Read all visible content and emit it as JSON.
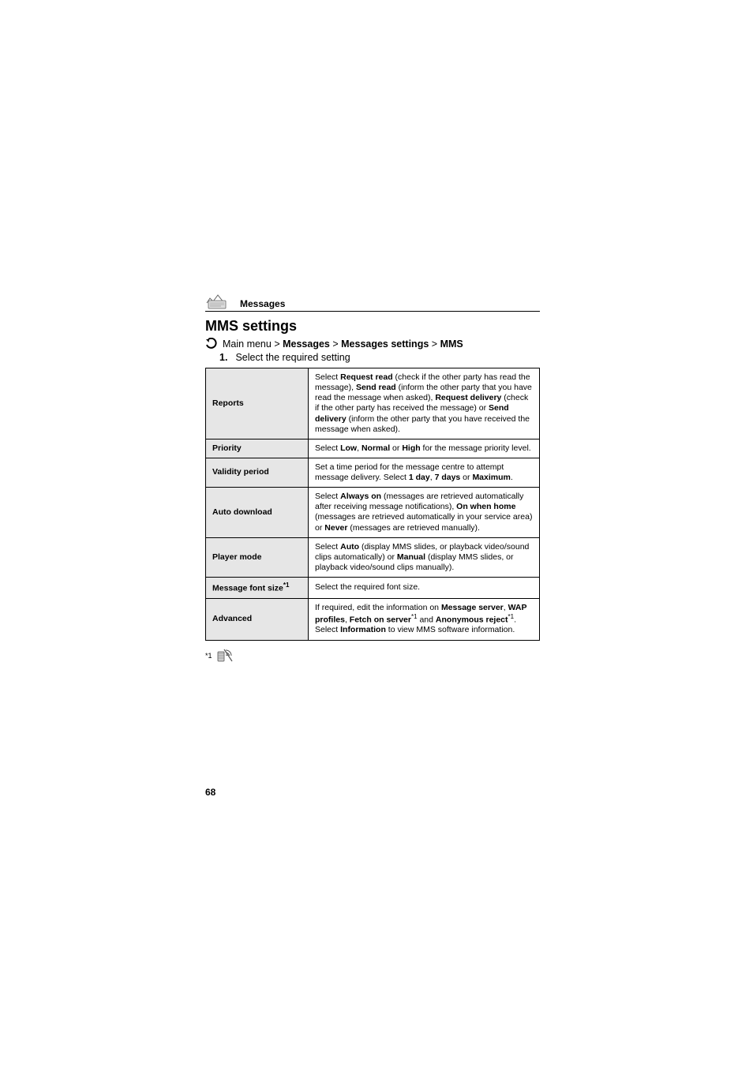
{
  "header": {
    "section_label": "Messages"
  },
  "title": "MMS settings",
  "breadcrumb": {
    "prefix": "Main menu",
    "sep": ">",
    "items": [
      "Messages",
      "Messages settings",
      "MMS"
    ]
  },
  "step": {
    "num": "1.",
    "text": "Select the required setting"
  },
  "table": {
    "rows": [
      {
        "label": "Reports",
        "desc_parts": [
          {
            "t": "Select ",
            "b": false
          },
          {
            "t": "Request read",
            "b": true
          },
          {
            "t": " (check if the other party has read the message), ",
            "b": false
          },
          {
            "t": "Send read",
            "b": true
          },
          {
            "t": " (inform the other party that you have read the message when asked), ",
            "b": false
          },
          {
            "t": "Request delivery",
            "b": true
          },
          {
            "t": " (check if the other party has received the message) or ",
            "b": false
          },
          {
            "t": "Send delivery",
            "b": true
          },
          {
            "t": " (inform the other party that you have received the message when asked).",
            "b": false
          }
        ]
      },
      {
        "label": "Priority",
        "desc_parts": [
          {
            "t": "Select ",
            "b": false
          },
          {
            "t": "Low",
            "b": true
          },
          {
            "t": ", ",
            "b": false
          },
          {
            "t": "Normal",
            "b": true
          },
          {
            "t": " or ",
            "b": false
          },
          {
            "t": "High",
            "b": true
          },
          {
            "t": " for the message priority level.",
            "b": false
          }
        ]
      },
      {
        "label": "Validity period",
        "desc_parts": [
          {
            "t": "Set a time period for the message centre to attempt message delivery. Select ",
            "b": false
          },
          {
            "t": "1 day",
            "b": true
          },
          {
            "t": ", ",
            "b": false
          },
          {
            "t": "7 days",
            "b": true
          },
          {
            "t": " or ",
            "b": false
          },
          {
            "t": "Maximum",
            "b": true
          },
          {
            "t": ".",
            "b": false
          }
        ]
      },
      {
        "label": "Auto download",
        "desc_parts": [
          {
            "t": "Select ",
            "b": false
          },
          {
            "t": "Always on",
            "b": true
          },
          {
            "t": " (messages are retrieved automatically after receiving message notifications), ",
            "b": false
          },
          {
            "t": "On when home",
            "b": true
          },
          {
            "t": " (messages are retrieved automatically in your service area) or ",
            "b": false
          },
          {
            "t": "Never",
            "b": true
          },
          {
            "t": " (messages are retrieved manually).",
            "b": false
          }
        ]
      },
      {
        "label": "Player mode",
        "desc_parts": [
          {
            "t": "Select ",
            "b": false
          },
          {
            "t": "Auto",
            "b": true
          },
          {
            "t": " (display MMS slides, or playback video/sound clips automatically) or ",
            "b": false
          },
          {
            "t": "Manual",
            "b": true
          },
          {
            "t": " (display MMS slides, or playback video/sound clips manually).",
            "b": false
          }
        ]
      },
      {
        "label_html": "Message font size",
        "label_sup": "*1",
        "desc_parts": [
          {
            "t": "Select the required font size.",
            "b": false
          }
        ]
      },
      {
        "label": "Advanced",
        "desc_parts": [
          {
            "t": "If required, edit the information on ",
            "b": false
          },
          {
            "t": "Message server",
            "b": true
          },
          {
            "t": ", ",
            "b": false
          },
          {
            "t": "WAP profiles",
            "b": true
          },
          {
            "t": ", ",
            "b": false
          },
          {
            "t": "Fetch on server",
            "b": true
          },
          {
            "t": "*1",
            "b": false,
            "sup": true
          },
          {
            "t": " and ",
            "b": false
          },
          {
            "t": "Anonymous reject",
            "b": true
          },
          {
            "t": "*1",
            "b": false,
            "sup": true
          },
          {
            "t": ". Select ",
            "b": false
          },
          {
            "t": "Information",
            "b": true
          },
          {
            "t": " to view MMS software information.",
            "b": false
          }
        ]
      }
    ]
  },
  "footnote": {
    "marker": "*1"
  },
  "page_number": "68",
  "colors": {
    "cell_label_bg": "#e6e6e6",
    "text": "#000000",
    "bg": "#ffffff"
  }
}
